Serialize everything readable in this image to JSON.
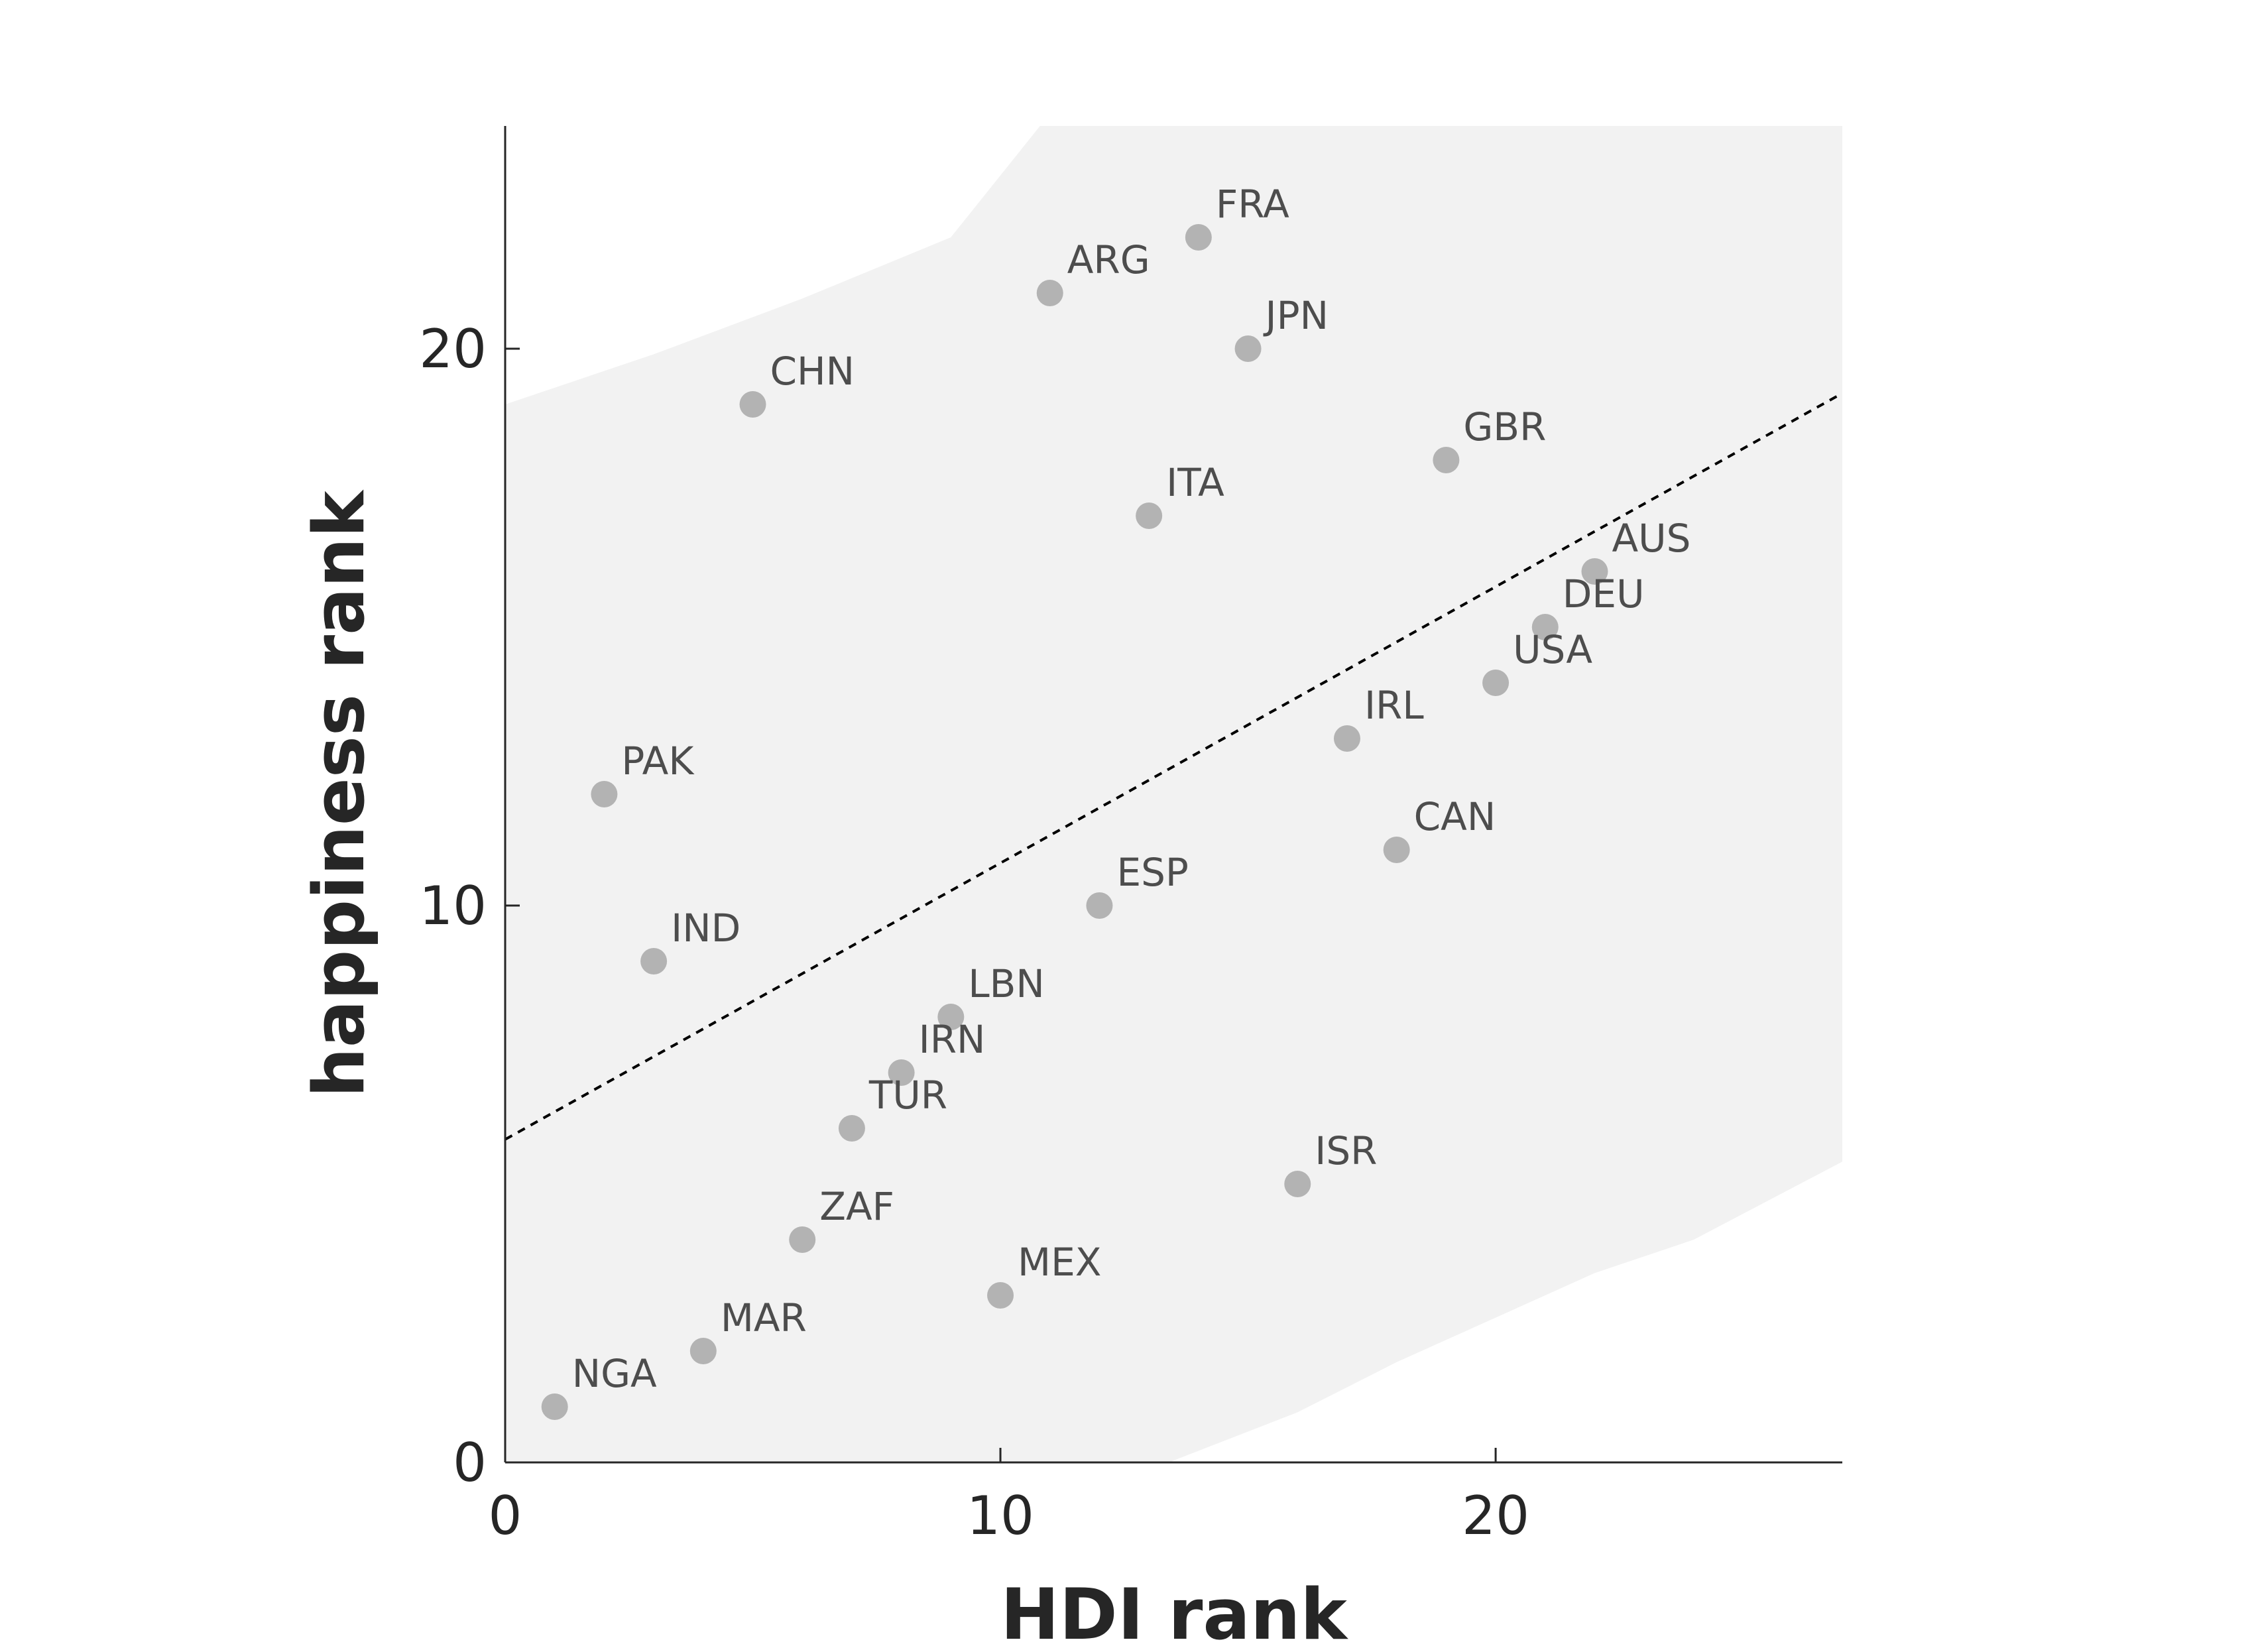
{
  "chart_data": {
    "type": "scatter",
    "title": "",
    "xlabel": "HDI rank",
    "ylabel": "happiness rank",
    "xlim": [
      0,
      27
    ],
    "ylim": [
      0,
      24
    ],
    "xticks": [
      0,
      10,
      20
    ],
    "yticks": [
      0,
      10,
      20
    ],
    "grid": false,
    "legend": "none",
    "point_color": "#b3b3b3",
    "band_color": "#f2f2f2",
    "trend_line": {
      "style": "dashed",
      "color": "#000000",
      "x": [
        0,
        27
      ],
      "y": [
        5.8,
        19.2
      ]
    },
    "confidence_band": {
      "x": [
        0,
        3,
        6,
        9,
        10.8,
        13.4,
        16,
        18,
        20,
        22,
        24,
        27
      ],
      "upper": [
        19.0,
        19.9,
        20.9,
        22.0,
        24.0,
        24.0,
        24.0,
        24.0,
        24.0,
        24.0,
        24.0,
        24.0
      ],
      "lower": [
        0,
        0,
        0,
        0,
        0,
        0,
        0.9,
        1.8,
        2.6,
        3.4,
        4.0,
        5.4
      ]
    },
    "points": [
      {
        "label": "NGA",
        "x": 1,
        "y": 1
      },
      {
        "label": "PAK",
        "x": 2,
        "y": 12
      },
      {
        "label": "IND",
        "x": 3,
        "y": 9
      },
      {
        "label": "MAR",
        "x": 4,
        "y": 2
      },
      {
        "label": "CHN",
        "x": 5,
        "y": 19
      },
      {
        "label": "ZAF",
        "x": 6,
        "y": 4
      },
      {
        "label": "TUR",
        "x": 7,
        "y": 6
      },
      {
        "label": "IRN",
        "x": 8,
        "y": 7
      },
      {
        "label": "LBN",
        "x": 9,
        "y": 8
      },
      {
        "label": "MEX",
        "x": 10,
        "y": 3
      },
      {
        "label": "ARG",
        "x": 11,
        "y": 21
      },
      {
        "label": "ESP",
        "x": 12,
        "y": 10
      },
      {
        "label": "ITA",
        "x": 13,
        "y": 17
      },
      {
        "label": "FRA",
        "x": 14,
        "y": 22
      },
      {
        "label": "JPN",
        "x": 15,
        "y": 20
      },
      {
        "label": "ISR",
        "x": 16,
        "y": 5
      },
      {
        "label": "IRL",
        "x": 17,
        "y": 13
      },
      {
        "label": "CAN",
        "x": 18,
        "y": 11
      },
      {
        "label": "GBR",
        "x": 19,
        "y": 18
      },
      {
        "label": "USA",
        "x": 20,
        "y": 14
      },
      {
        "label": "DEU",
        "x": 21,
        "y": 15
      },
      {
        "label": "AUS",
        "x": 22,
        "y": 16
      }
    ]
  }
}
